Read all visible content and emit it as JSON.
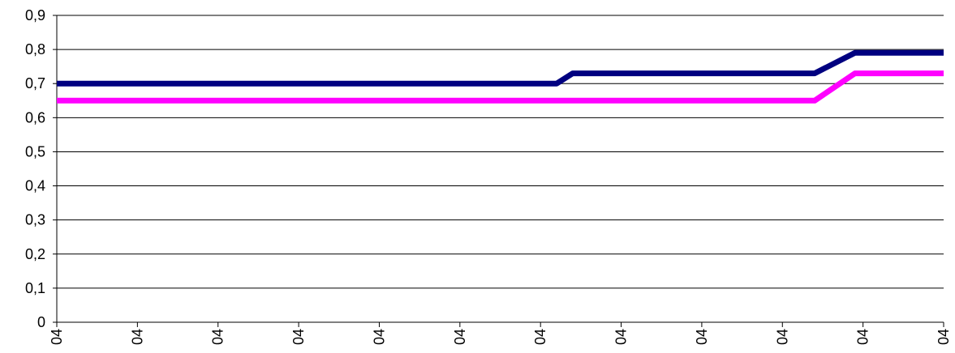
{
  "chart_data": {
    "type": "line",
    "title": "",
    "xlabel": "",
    "ylabel": "",
    "ylim": [
      0,
      0.9
    ],
    "y_ticks": [
      "0",
      "0,1",
      "0,2",
      "0,3",
      "0,4",
      "0,5",
      "0,6",
      "0,7",
      "0,8",
      "0,9"
    ],
    "x_ticks": [
      "04",
      "04",
      "04",
      "04",
      "04",
      "04",
      "04",
      "04",
      "04",
      "04",
      "04",
      "04"
    ],
    "grid": "horizontal",
    "legend": "none",
    "series": [
      {
        "color": "#000080",
        "points": [
          [
            0,
            0.7
          ],
          [
            6.2,
            0.7
          ],
          [
            6.4,
            0.73
          ],
          [
            9.4,
            0.73
          ],
          [
            9.9,
            0.79
          ],
          [
            11,
            0.79
          ]
        ]
      },
      {
        "color": "#FF00FF",
        "points": [
          [
            0,
            0.65
          ],
          [
            9.4,
            0.65
          ],
          [
            9.9,
            0.73
          ],
          [
            11,
            0.73
          ]
        ]
      }
    ]
  }
}
